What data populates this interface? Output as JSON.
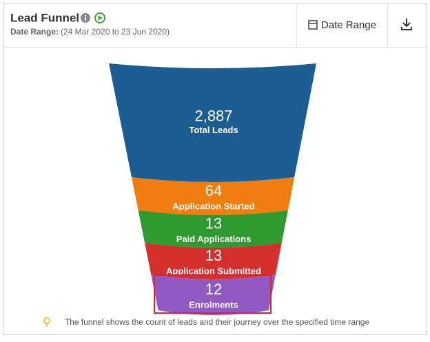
{
  "header": {
    "title": "Lead Funnel",
    "date_range_label": "Date Range:",
    "date_range": "(24 Mar 2020 to 23 Jun 2020)",
    "date_range_button": "Date Range"
  },
  "chart_data": {
    "type": "funnel",
    "categories": [
      "Total Leads",
      "Application Started",
      "Paid Applications",
      "Application Submitted",
      "Enrolments"
    ],
    "values": [
      2887,
      64,
      13,
      13,
      12
    ],
    "value_labels": [
      "2,887",
      "64",
      "13",
      "13",
      "12"
    ],
    "colors": [
      "#1c5e91",
      "#f07d10",
      "#2f9a2f",
      "#d4302e",
      "#9159c1"
    ]
  },
  "footnote": "The funnel shows the count of leads and their journey over the specified time range"
}
